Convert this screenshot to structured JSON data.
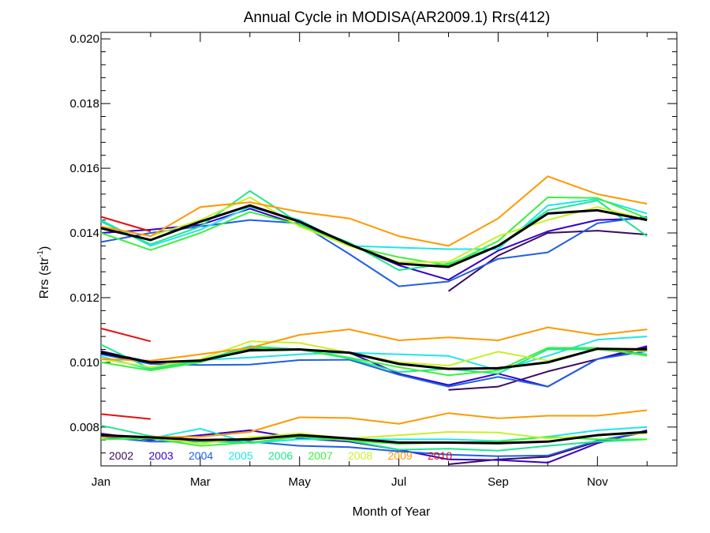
{
  "chart_data": {
    "type": "line",
    "title": "Annual Cycle in MODISA(AR2009.1) Rrs(412)",
    "xlabel": "Month of Year",
    "ylabel": "Rrs (str",
    "ylabel_sup": "-1",
    "ylabel_suffix": ")",
    "x": [
      1,
      2,
      3,
      4,
      5,
      6,
      7,
      8,
      9,
      10,
      11,
      12
    ],
    "xlim": [
      1,
      12.6
    ],
    "ylim": [
      0.0068,
      0.0202
    ],
    "xticks": [
      {
        "value": 1,
        "label": "Jan"
      },
      {
        "value": 3,
        "label": "Mar"
      },
      {
        "value": 5,
        "label": "May"
      },
      {
        "value": 7,
        "label": "Jul"
      },
      {
        "value": 9,
        "label": "Sep"
      },
      {
        "value": 11,
        "label": "Nov"
      }
    ],
    "yticks": [
      {
        "value": 0.008,
        "label": "0.008"
      },
      {
        "value": 0.01,
        "label": "0.010"
      },
      {
        "value": 0.012,
        "label": "0.012"
      },
      {
        "value": 0.014,
        "label": "0.014"
      },
      {
        "value": 0.016,
        "label": "0.016"
      },
      {
        "value": 0.018,
        "label": "0.018"
      },
      {
        "value": 0.02,
        "label": "0.020"
      }
    ],
    "grid": false,
    "legend_position": "bottom-left inside",
    "mean_color": "#000000",
    "series": [
      {
        "name": "2002",
        "color": "#3d0a5e",
        "groups": [
          [
            null,
            null,
            null,
            null,
            null,
            null,
            null,
            0.0122,
            0.0133,
            0.014,
            0.01407,
            0.01395
          ],
          [
            null,
            null,
            null,
            null,
            null,
            null,
            null,
            0.00915,
            0.00925,
            0.00972,
            0.0101,
            0.01045
          ],
          [
            null,
            null,
            null,
            null,
            null,
            null,
            null,
            0.00685,
            0.007,
            0.00708,
            0.00755,
            0.00785
          ]
        ]
      },
      {
        "name": "2003",
        "color": "#3300cc",
        "groups": [
          [
            0.014,
            0.0141,
            0.01425,
            0.01475,
            0.01425,
            0.01365,
            0.013,
            0.01255,
            0.01345,
            0.01405,
            0.0144,
            0.01445
          ],
          [
            0.01035,
            0.01,
            0.01005,
            0.0104,
            0.0104,
            0.0103,
            0.00965,
            0.0093,
            0.00965,
            0.00925,
            0.0101,
            0.0105
          ],
          [
            0.0078,
            0.0076,
            0.00775,
            0.0079,
            0.00765,
            0.00755,
            0.0073,
            0.007,
            0.00698,
            0.0069,
            0.0075,
            0.0079
          ]
        ]
      },
      {
        "name": "2004",
        "color": "#1e5fe6",
        "groups": [
          [
            0.01372,
            0.014,
            0.0142,
            0.0144,
            0.0143,
            0.01335,
            0.01235,
            0.0125,
            0.0132,
            0.0134,
            0.0143,
            0.0145
          ],
          [
            0.01025,
            0.00995,
            0.00992,
            0.00993,
            0.01007,
            0.01008,
            0.00962,
            0.00925,
            0.00955,
            0.00925,
            0.0101,
            0.01035
          ],
          [
            0.0077,
            0.00755,
            0.00755,
            0.00755,
            0.00742,
            0.00738,
            0.00725,
            0.00715,
            0.0071,
            0.00712,
            0.00758,
            0.00785
          ]
        ]
      },
      {
        "name": "2005",
        "color": "#1ee6e6",
        "groups": [
          [
            0.0144,
            0.0136,
            0.0141,
            0.0148,
            0.0144,
            0.0136,
            0.01355,
            0.0135,
            0.0135,
            0.01485,
            0.01505,
            0.0146
          ],
          [
            0.01018,
            0.00978,
            0.01007,
            0.01015,
            0.01025,
            0.0103,
            0.01025,
            0.0102,
            0.00975,
            0.0102,
            0.0107,
            0.0108
          ],
          [
            0.00772,
            0.00765,
            0.00795,
            0.0075,
            0.00762,
            0.00762,
            0.00762,
            0.00762,
            0.00757,
            0.0077,
            0.0079,
            0.008
          ]
        ]
      },
      {
        "name": "2006",
        "color": "#1ee68c",
        "groups": [
          [
            0.01435,
            0.01365,
            0.0142,
            0.0153,
            0.0143,
            0.0137,
            0.01285,
            0.01305,
            0.0136,
            0.0147,
            0.015,
            0.0139
          ],
          [
            0.01055,
            0.0098,
            0.01005,
            0.0105,
            0.0104,
            0.01012,
            0.0097,
            0.0098,
            0.00965,
            0.0104,
            0.0104,
            0.01025
          ],
          [
            0.00805,
            0.00772,
            0.00755,
            0.00752,
            0.0077,
            0.00758,
            0.0073,
            0.00733,
            0.00727,
            0.00742,
            0.00755,
            0.00762
          ]
        ]
      },
      {
        "name": "2007",
        "color": "#3cf03c",
        "groups": [
          [
            0.014,
            0.01347,
            0.014,
            0.01465,
            0.01425,
            0.0136,
            0.01325,
            0.013,
            0.01375,
            0.0151,
            0.01508,
            0.01445
          ],
          [
            0.01,
            0.00975,
            0.01,
            0.01045,
            0.0104,
            0.01015,
            0.00985,
            0.0096,
            0.00975,
            0.01045,
            0.01045,
            0.0102
          ],
          [
            0.00762,
            0.00765,
            0.00742,
            0.00752,
            0.0077,
            0.00758,
            0.00748,
            0.00752,
            0.00755,
            0.0077,
            0.00762,
            0.00762
          ]
        ]
      },
      {
        "name": "2008",
        "color": "#c8f028",
        "groups": [
          [
            0.0142,
            0.0139,
            0.0144,
            0.0151,
            0.0142,
            0.0136,
            0.0131,
            0.0131,
            0.0139,
            0.0144,
            0.0148,
            0.0144
          ],
          [
            0.0101,
            0.00985,
            0.0101,
            0.01065,
            0.0106,
            0.0103,
            0.01,
            0.0099,
            0.01033,
            0.01005,
            0.0104,
            0.01035
          ],
          [
            0.0077,
            0.0077,
            0.00748,
            0.00768,
            0.0078,
            0.00765,
            0.00775,
            0.00785,
            0.00783,
            0.00765,
            0.00775,
            0.0078
          ]
        ]
      },
      {
        "name": "2009",
        "color": "#ff9900",
        "groups": [
          [
            0.0142,
            0.0139,
            0.0148,
            0.01495,
            0.01465,
            0.01445,
            0.0139,
            0.0136,
            0.01445,
            0.01575,
            0.0152,
            0.0149
          ],
          [
            0.0101,
            0.01005,
            0.01025,
            0.01045,
            0.01085,
            0.01102,
            0.01068,
            0.01077,
            0.01068,
            0.01108,
            0.01085,
            0.01102
          ],
          [
            0.0077,
            0.0077,
            0.0077,
            0.00785,
            0.0083,
            0.00828,
            0.0081,
            0.00843,
            0.00827,
            0.00835,
            0.00835,
            0.00852
          ]
        ]
      },
      {
        "name": "2010",
        "color": "#e60f0f",
        "groups": [
          [
            0.0145,
            0.01405,
            null,
            null,
            null,
            null,
            null,
            null,
            null,
            null,
            null,
            null
          ],
          [
            0.01105,
            0.01065,
            null,
            null,
            null,
            null,
            null,
            null,
            null,
            null,
            null,
            null
          ],
          [
            0.0084,
            0.00825,
            null,
            null,
            null,
            null,
            null,
            null,
            null,
            null,
            null,
            null
          ]
        ]
      }
    ],
    "mean_groups": [
      [
        0.01415,
        0.01378,
        0.01435,
        0.01485,
        0.01435,
        0.01365,
        0.01305,
        0.01295,
        0.0136,
        0.0146,
        0.0147,
        0.0144
      ],
      [
        0.0103,
        0.01,
        0.01005,
        0.01037,
        0.0104,
        0.0103,
        0.00995,
        0.0098,
        0.00982,
        0.01,
        0.01042,
        0.0104
      ],
      [
        0.00775,
        0.00768,
        0.0076,
        0.00762,
        0.00775,
        0.00765,
        0.00752,
        0.00752,
        0.0075,
        0.00755,
        0.00775,
        0.00785
      ]
    ]
  }
}
